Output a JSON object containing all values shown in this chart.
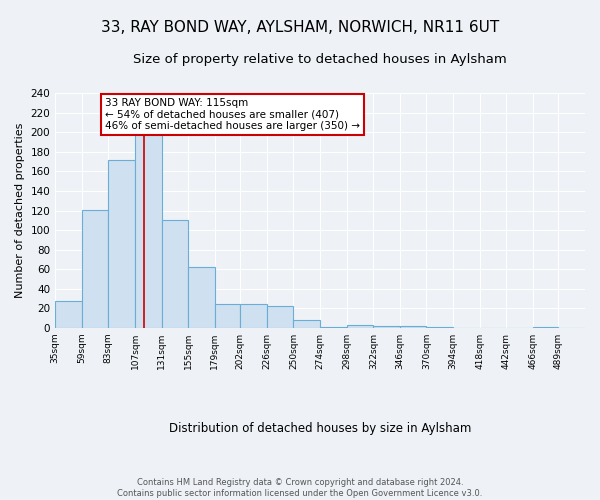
{
  "title1": "33, RAY BOND WAY, AYLSHAM, NORWICH, NR11 6UT",
  "title2": "Size of property relative to detached houses in Aylsham",
  "xlabel": "Distribution of detached houses by size in Aylsham",
  "ylabel": "Number of detached properties",
  "bin_edges": [
    35,
    59,
    83,
    107,
    131,
    155,
    179,
    202,
    226,
    250,
    274,
    298,
    322,
    346,
    370,
    394,
    418,
    442,
    466,
    489,
    513
  ],
  "bar_heights": [
    28,
    121,
    172,
    200,
    110,
    62,
    25,
    25,
    22,
    8,
    1,
    3,
    2,
    2,
    1,
    0,
    0,
    0,
    1,
    0
  ],
  "bar_color": "#cfe0f0",
  "bar_edge_color": "#6aaed6",
  "property_size": 115,
  "vline_color": "#cc0000",
  "annotation_text": "33 RAY BOND WAY: 115sqm\n← 54% of detached houses are smaller (407)\n46% of semi-detached houses are larger (350) →",
  "annotation_box_color": "white",
  "annotation_box_edge_color": "#cc0000",
  "footer_text": "Contains HM Land Registry data © Crown copyright and database right 2024.\nContains public sector information licensed under the Open Government Licence v3.0.",
  "bg_color": "#eef2f7",
  "ylim": [
    0,
    240
  ],
  "title1_fontsize": 11,
  "title2_fontsize": 9.5
}
